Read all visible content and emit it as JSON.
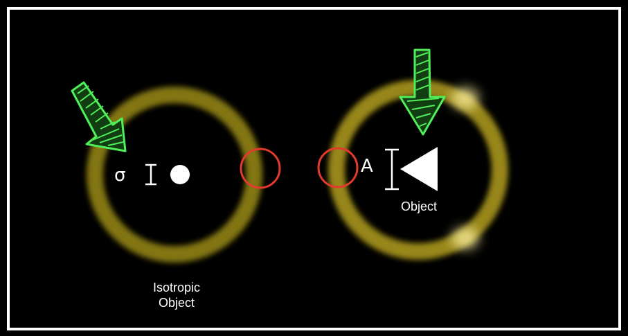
{
  "colors": {
    "background": "#000000",
    "frame": "#ffffff",
    "ring": "#d6c21f",
    "highlight": "#e33a2e",
    "arrow": "#35d043",
    "text": "#ffffff"
  },
  "left_panel": {
    "symbol": "σ",
    "label_line1": "Isotropic",
    "label_line2": "Object"
  },
  "right_panel": {
    "symbol": "A",
    "label": "Object"
  },
  "icons": [
    "arrow-down-right-icon",
    "arrow-down-icon",
    "dot-icon",
    "triangle-left-icon",
    "size-bar-icon"
  ]
}
